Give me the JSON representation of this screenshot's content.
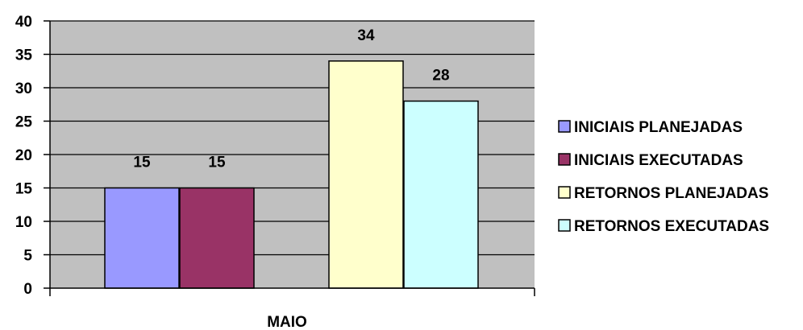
{
  "chart_data": {
    "type": "bar",
    "categories": [
      "MAIO"
    ],
    "series": [
      {
        "name": "INICIAIS PLANEJADAS",
        "values": [
          15
        ],
        "color": "#9999ff"
      },
      {
        "name": "INICIAIS EXECUTADAS",
        "values": [
          15
        ],
        "color": "#993366"
      },
      {
        "name": "RETORNOS PLANEJADAS",
        "values": [
          34
        ],
        "color": "#ffffcc"
      },
      {
        "name": "RETORNOS EXECUTADAS",
        "values": [
          28
        ],
        "color": "#ccffff"
      }
    ],
    "y_ticks": [
      "0",
      "5",
      "10",
      "15",
      "20",
      "25",
      "30",
      "35",
      "40"
    ],
    "ylim": [
      0,
      40
    ],
    "grid": true,
    "plot_background": "#c0c0c0",
    "legend": "right",
    "data_labels": true
  }
}
